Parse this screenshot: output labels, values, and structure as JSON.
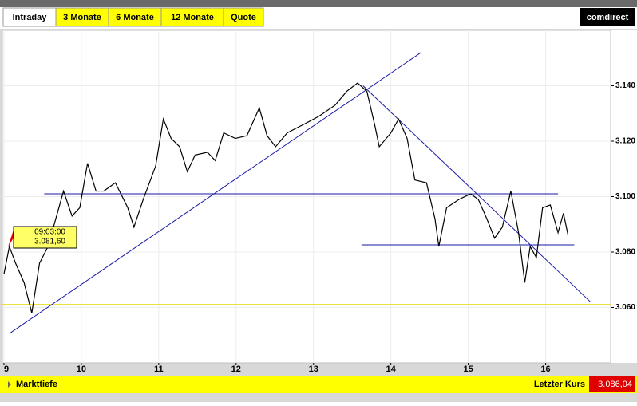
{
  "tabs": [
    "Intraday",
    "3 Monate",
    "6 Monate",
    "12 Monate",
    "Quote"
  ],
  "logo": "comdirect",
  "footer": {
    "link": "Markttiefe",
    "last_label": "Letzter Kurs",
    "last_value": "3.086,04"
  },
  "chart_data": {
    "type": "line",
    "color": "#000000",
    "x": [
      9.0,
      9.07,
      9.15,
      9.26,
      9.36,
      9.46,
      9.57,
      9.67,
      9.77,
      9.88,
      9.98,
      10.08,
      10.19,
      10.29,
      10.44,
      10.6,
      10.68,
      10.8,
      10.96,
      11.06,
      11.16,
      11.27,
      11.37,
      11.47,
      11.63,
      11.73,
      11.84,
      11.99,
      12.14,
      12.3,
      12.4,
      12.51,
      12.66,
      12.87,
      13.07,
      13.28,
      13.43,
      13.57,
      13.69,
      13.79,
      13.85,
      14.0,
      14.1,
      14.21,
      14.31,
      14.46,
      14.57,
      14.62,
      14.72,
      14.88,
      15.03,
      15.13,
      15.24,
      15.34,
      15.44,
      15.55,
      15.65,
      15.73,
      15.8,
      15.88,
      15.96,
      16.06,
      16.16,
      16.23,
      16.29
    ],
    "values": [
      3072,
      3082,
      3076,
      3069,
      3058,
      3076,
      3082,
      3092,
      3102,
      3093,
      3096,
      3112,
      3102,
      3102,
      3105,
      3096,
      3089,
      3099,
      3111,
      3128,
      3121,
      3118,
      3109,
      3115,
      3116,
      3113,
      3123,
      3121,
      3122,
      3132,
      3122,
      3118,
      3123,
      3126,
      3129,
      3133,
      3138,
      3141,
      3138,
      3126,
      3118,
      3123,
      3128,
      3121,
      3106,
      3105,
      3092,
      3082,
      3096,
      3099,
      3101,
      3099,
      3092,
      3085,
      3089,
      3102,
      3087,
      3069,
      3082,
      3078,
      3096,
      3097,
      3087,
      3094,
      3086
    ],
    "xlim": [
      8.98,
      16.84
    ],
    "xticks": [
      9,
      10,
      11,
      12,
      13,
      14,
      15,
      16
    ],
    "ylim": [
      3040,
      3160
    ],
    "yticks": [
      {
        "value": 3060,
        "label": "3.060"
      },
      {
        "value": 3080,
        "label": "3.080"
      },
      {
        "value": 3100,
        "label": "3.100"
      },
      {
        "value": 3120,
        "label": "3.120"
      },
      {
        "value": 3140,
        "label": "3.140"
      }
    ],
    "grid": true,
    "trendline_color": "#1a1aa8",
    "trendlines": [
      {
        "x": [
          9.07,
          14.39
        ],
        "y": [
          3050.6,
          3152
        ]
      },
      {
        "x": [
          13.64,
          16.58
        ],
        "y": [
          3140,
          3062
        ]
      },
      {
        "x": [
          9.52,
          16.16
        ],
        "y": [
          3101,
          3101
        ]
      },
      {
        "x": [
          13.62,
          16.37
        ],
        "y": [
          3082.6,
          3082.6
        ]
      }
    ],
    "reference_line": 3061,
    "reference_color": "#e8d800",
    "tooltip": {
      "time": "09:03:00",
      "price": "3.081,60",
      "x": 9.05,
      "value": 3081.6
    }
  }
}
